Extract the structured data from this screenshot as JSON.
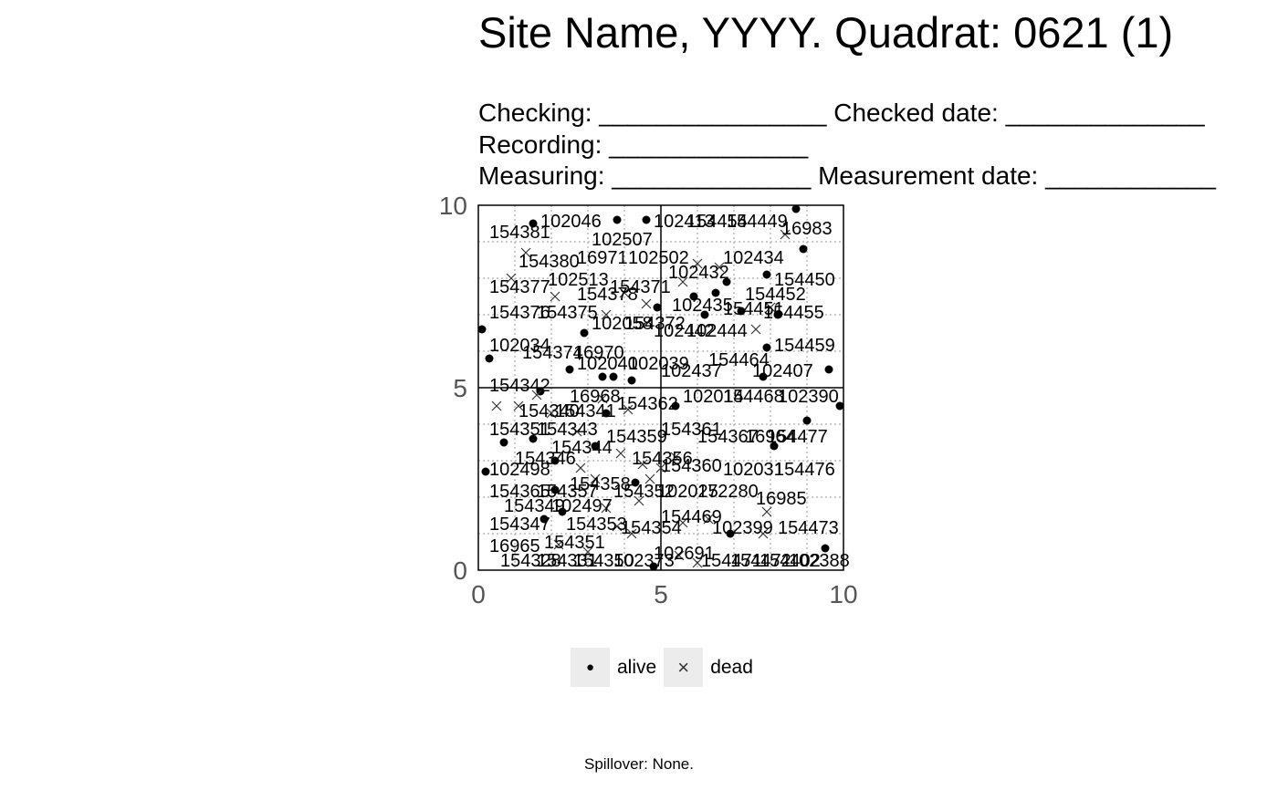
{
  "header": {
    "title": "Site Name, YYYY. Quadrat: 0621 (1)",
    "line1": "Checking: ________________ Checked date: ______________",
    "line2": "Recording: ______________",
    "line3": "Measuring: ______________ Measurement date: ____________"
  },
  "legend": {
    "alive": {
      "label": "alive",
      "symbol": "●"
    },
    "dead": {
      "label": "dead",
      "symbol": "×"
    }
  },
  "caption": "Spillover: None.",
  "chart_data": {
    "type": "scatter",
    "title": "Site Name, YYYY. Quadrat: 0621 (1)",
    "xlim": [
      0,
      10
    ],
    "ylim": [
      0,
      10
    ],
    "xticks": [
      0,
      5,
      10
    ],
    "yticks": [
      0,
      5,
      10
    ],
    "grid": true,
    "legend_position": "bottom",
    "series": [
      {
        "name": "alive",
        "points": [
          [
            1.5,
            9.5
          ],
          [
            3.8,
            9.6
          ],
          [
            4.6,
            9.6
          ],
          [
            8.7,
            9.9
          ],
          [
            8.9,
            8.8
          ],
          [
            6.8,
            7.9
          ],
          [
            6.5,
            7.6
          ],
          [
            5.9,
            7.5
          ],
          [
            6.2,
            7.0
          ],
          [
            7.2,
            7.1
          ],
          [
            7.9,
            8.1
          ],
          [
            8.2,
            7.0
          ],
          [
            0.1,
            6.6
          ],
          [
            0.3,
            5.8
          ],
          [
            2.9,
            6.5
          ],
          [
            4.9,
            7.2
          ],
          [
            2.5,
            5.5
          ],
          [
            3.4,
            5.3
          ],
          [
            3.7,
            5.3
          ],
          [
            4.2,
            5.2
          ],
          [
            7.8,
            5.3
          ],
          [
            7.9,
            6.1
          ],
          [
            9.6,
            5.5
          ],
          [
            9.9,
            4.5
          ],
          [
            1.7,
            4.9
          ],
          [
            3.5,
            4.3
          ],
          [
            5.4,
            4.5
          ],
          [
            0.7,
            3.5
          ],
          [
            1.5,
            3.6
          ],
          [
            2.1,
            3.0
          ],
          [
            3.2,
            3.4
          ],
          [
            0.2,
            2.7
          ],
          [
            2.1,
            2.2
          ],
          [
            2.3,
            1.6
          ],
          [
            1.8,
            1.4
          ],
          [
            4.3,
            2.4
          ],
          [
            8.1,
            3.4
          ],
          [
            9.0,
            4.1
          ],
          [
            6.9,
            1.0
          ],
          [
            9.5,
            0.6
          ],
          [
            4.8,
            0.1
          ]
        ]
      },
      {
        "name": "dead",
        "points": [
          [
            1.3,
            8.7
          ],
          [
            0.9,
            8.0
          ],
          [
            2.1,
            7.5
          ],
          [
            3.5,
            7.0
          ],
          [
            4.0,
            7.6
          ],
          [
            4.6,
            7.3
          ],
          [
            5.6,
            7.9
          ],
          [
            6.0,
            8.4
          ],
          [
            6.6,
            8.3
          ],
          [
            8.0,
            7.2
          ],
          [
            7.6,
            6.6
          ],
          [
            8.4,
            9.2
          ],
          [
            0.5,
            4.5
          ],
          [
            1.1,
            4.5
          ],
          [
            1.6,
            4.8
          ],
          [
            2.0,
            4.3
          ],
          [
            3.4,
            4.7
          ],
          [
            4.1,
            4.4
          ],
          [
            2.7,
            3.8
          ],
          [
            3.9,
            3.2
          ],
          [
            4.5,
            2.9
          ],
          [
            4.7,
            2.5
          ],
          [
            2.8,
            2.8
          ],
          [
            3.2,
            2.5
          ],
          [
            5.0,
            2.8
          ],
          [
            5.4,
            3.1
          ],
          [
            3.5,
            1.7
          ],
          [
            3.8,
            1.2
          ],
          [
            4.2,
            1.0
          ],
          [
            5.6,
            1.3
          ],
          [
            6.3,
            1.4
          ],
          [
            7.9,
            1.6
          ],
          [
            7.8,
            1.0
          ],
          [
            6.0,
            0.2
          ],
          [
            5.5,
            0.4
          ],
          [
            3.0,
            0.5
          ],
          [
            2.2,
            0.7
          ],
          [
            4.4,
            1.9
          ]
        ]
      }
    ],
    "labels": [
      [
        "154381",
        0.3,
        9.1
      ],
      [
        "102046",
        1.7,
        9.4
      ],
      [
        "102507",
        3.1,
        8.9
      ],
      [
        "154380",
        1.1,
        8.3
      ],
      [
        "16971",
        2.7,
        8.4
      ],
      [
        "102502",
        4.1,
        8.4
      ],
      [
        "102413",
        4.8,
        9.4
      ],
      [
        "154454",
        5.7,
        9.4
      ],
      [
        "154449",
        6.8,
        9.4
      ],
      [
        "16983",
        8.3,
        9.2
      ],
      [
        "102432",
        5.2,
        8.0
      ],
      [
        "102434",
        6.7,
        8.4
      ],
      [
        "102513",
        1.9,
        7.8
      ],
      [
        "154377",
        0.3,
        7.6
      ],
      [
        "154378",
        2.7,
        7.4
      ],
      [
        "154371",
        3.6,
        7.6
      ],
      [
        "154450",
        8.1,
        7.8
      ],
      [
        "154452",
        7.3,
        7.4
      ],
      [
        "102435",
        5.3,
        7.1
      ],
      [
        "154451",
        6.7,
        7.0
      ],
      [
        "154455",
        7.8,
        6.9
      ],
      [
        "154376",
        0.3,
        6.9
      ],
      [
        "154375",
        1.6,
        6.9
      ],
      [
        "102058",
        3.1,
        6.6
      ],
      [
        "154372",
        4.0,
        6.6
      ],
      [
        "102442",
        4.8,
        6.4
      ],
      [
        "102444",
        5.7,
        6.4
      ],
      [
        "102034",
        0.3,
        6.0
      ],
      [
        "154374",
        1.2,
        5.8
      ],
      [
        "16970",
        2.6,
        5.8
      ],
      [
        "102040",
        2.7,
        5.5
      ],
      [
        "102039",
        4.1,
        5.5
      ],
      [
        "102437",
        5.0,
        5.3
      ],
      [
        "154464",
        6.3,
        5.6
      ],
      [
        "102407",
        7.5,
        5.3
      ],
      [
        "154459",
        8.1,
        6.0
      ],
      [
        "154342",
        0.3,
        4.9
      ],
      [
        "16968",
        2.5,
        4.6
      ],
      [
        "102014",
        5.6,
        4.6
      ],
      [
        "154468",
        6.7,
        4.6
      ],
      [
        "102390",
        8.2,
        4.6
      ],
      [
        "154340",
        1.1,
        4.2
      ],
      [
        "154341",
        2.1,
        4.2
      ],
      [
        "154362",
        3.8,
        4.4
      ],
      [
        "154351",
        0.3,
        3.7
      ],
      [
        "154343",
        1.6,
        3.7
      ],
      [
        "154359",
        3.5,
        3.5
      ],
      [
        "154361",
        5.0,
        3.7
      ],
      [
        "154367",
        6.0,
        3.5
      ],
      [
        "16964",
        7.3,
        3.5
      ],
      [
        "154477",
        7.9,
        3.5
      ],
      [
        "154344",
        2.0,
        3.2
      ],
      [
        "154346",
        1.0,
        2.9
      ],
      [
        "154356",
        4.2,
        2.9
      ],
      [
        "154360",
        5.0,
        2.7
      ],
      [
        "102031",
        6.7,
        2.6
      ],
      [
        "154476",
        8.1,
        2.6
      ],
      [
        "102498",
        0.3,
        2.6
      ],
      [
        "154365",
        0.3,
        2.0
      ],
      [
        "154357",
        1.6,
        2.0
      ],
      [
        "154358",
        2.5,
        2.2
      ],
      [
        "154352",
        3.7,
        2.0
      ],
      [
        "102025",
        4.9,
        2.0
      ],
      [
        "172280",
        6.0,
        2.0
      ],
      [
        "102497",
        2.0,
        1.6
      ],
      [
        "154349",
        0.7,
        1.6
      ],
      [
        "16985",
        7.6,
        1.8
      ],
      [
        "154347",
        0.3,
        1.1
      ],
      [
        "154353",
        2.4,
        1.1
      ],
      [
        "154469",
        5.0,
        1.3
      ],
      [
        "154354",
        3.9,
        1.0
      ],
      [
        "102399",
        6.4,
        1.0
      ],
      [
        "154473",
        8.2,
        1.0
      ],
      [
        "154351",
        1.8,
        0.6
      ],
      [
        "16965",
        0.3,
        0.5
      ],
      [
        "154328",
        0.6,
        0.1
      ],
      [
        "154331",
        1.6,
        0.1
      ],
      [
        "154350",
        2.6,
        0.1
      ],
      [
        "102373",
        3.7,
        0.1
      ],
      [
        "102691",
        4.8,
        0.3
      ],
      [
        "154471",
        6.1,
        0.1
      ],
      [
        "154472",
        6.9,
        0.1
      ],
      [
        "154402",
        7.7,
        0.1
      ],
      [
        "102388",
        8.5,
        0.1
      ]
    ]
  }
}
